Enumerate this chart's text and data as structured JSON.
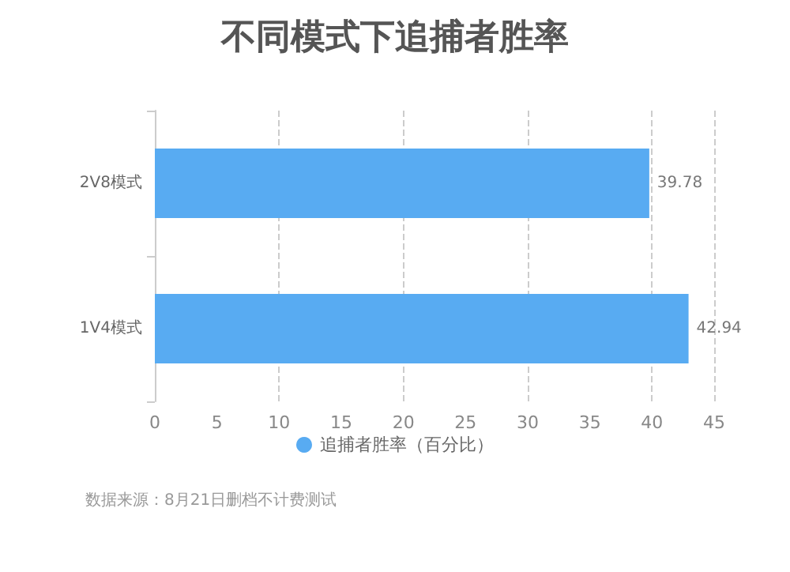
{
  "chart_data": {
    "type": "bar",
    "orientation": "horizontal",
    "title": "不同模式下追捕者胜率",
    "categories": [
      "2V8模式",
      "1V4模式"
    ],
    "series": [
      {
        "name": "追捕者胜率（百分比）",
        "color": "#58abf2",
        "values": [
          39.78,
          42.94
        ]
      }
    ],
    "xlim": [
      0,
      45
    ],
    "xticks": [
      0,
      5,
      10,
      15,
      20,
      25,
      30,
      35,
      40,
      45
    ],
    "grid": "x",
    "legend": "bottom",
    "data_labels": true,
    "annotations": [
      "数据来源：8月21日删档不计费测试"
    ]
  }
}
